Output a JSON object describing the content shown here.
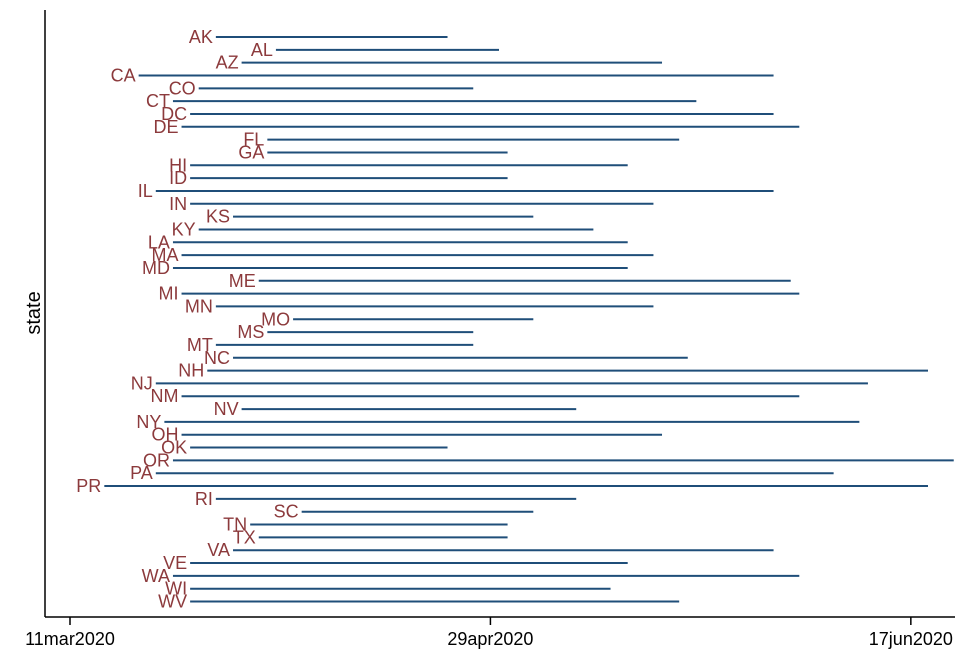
{
  "chart_data": {
    "type": "range",
    "ylabel": "state",
    "x_ticks": [
      "11mar2020",
      "29apr2020",
      "17jun2020"
    ],
    "x_range": [
      "2020-03-11",
      "2020-06-19"
    ],
    "colors": {
      "segment": "#1f4e79",
      "label": "#8c3a3c",
      "axis": "#000000"
    },
    "states": [
      {
        "name": "AK",
        "start": "2020-03-28",
        "end": "2020-04-24"
      },
      {
        "name": "AL",
        "start": "2020-04-04",
        "end": "2020-04-30"
      },
      {
        "name": "AZ",
        "start": "2020-03-31",
        "end": "2020-05-19"
      },
      {
        "name": "CA",
        "start": "2020-03-19",
        "end": "2020-06-01"
      },
      {
        "name": "CO",
        "start": "2020-03-26",
        "end": "2020-04-27"
      },
      {
        "name": "CT",
        "start": "2020-03-23",
        "end": "2020-05-23"
      },
      {
        "name": "DC",
        "start": "2020-03-25",
        "end": "2020-06-01"
      },
      {
        "name": "DE",
        "start": "2020-03-24",
        "end": "2020-06-04"
      },
      {
        "name": "FL",
        "start": "2020-04-03",
        "end": "2020-05-21"
      },
      {
        "name": "GA",
        "start": "2020-04-03",
        "end": "2020-05-01"
      },
      {
        "name": "HI",
        "start": "2020-03-25",
        "end": "2020-05-15"
      },
      {
        "name": "ID",
        "start": "2020-03-25",
        "end": "2020-05-01"
      },
      {
        "name": "IL",
        "start": "2020-03-21",
        "end": "2020-06-01"
      },
      {
        "name": "IN",
        "start": "2020-03-25",
        "end": "2020-05-18"
      },
      {
        "name": "KS",
        "start": "2020-03-30",
        "end": "2020-05-04"
      },
      {
        "name": "KY",
        "start": "2020-03-26",
        "end": "2020-05-11"
      },
      {
        "name": "LA",
        "start": "2020-03-23",
        "end": "2020-05-15"
      },
      {
        "name": "MA",
        "start": "2020-03-24",
        "end": "2020-05-18"
      },
      {
        "name": "MD",
        "start": "2020-03-23",
        "end": "2020-05-15"
      },
      {
        "name": "ME",
        "start": "2020-04-02",
        "end": "2020-06-03"
      },
      {
        "name": "MI",
        "start": "2020-03-24",
        "end": "2020-06-04"
      },
      {
        "name": "MN",
        "start": "2020-03-28",
        "end": "2020-05-18"
      },
      {
        "name": "MO",
        "start": "2020-04-06",
        "end": "2020-05-04"
      },
      {
        "name": "MS",
        "start": "2020-04-03",
        "end": "2020-04-27"
      },
      {
        "name": "MT",
        "start": "2020-03-28",
        "end": "2020-04-27"
      },
      {
        "name": "NC",
        "start": "2020-03-30",
        "end": "2020-05-22"
      },
      {
        "name": "NH",
        "start": "2020-03-27",
        "end": "2020-06-19"
      },
      {
        "name": "NJ",
        "start": "2020-03-21",
        "end": "2020-06-12"
      },
      {
        "name": "NM",
        "start": "2020-03-24",
        "end": "2020-06-04"
      },
      {
        "name": "NV",
        "start": "2020-03-31",
        "end": "2020-05-09"
      },
      {
        "name": "NY",
        "start": "2020-03-22",
        "end": "2020-06-11"
      },
      {
        "name": "OH",
        "start": "2020-03-24",
        "end": "2020-05-19"
      },
      {
        "name": "OK",
        "start": "2020-03-25",
        "end": "2020-04-24"
      },
      {
        "name": "OR",
        "start": "2020-03-23",
        "end": "2020-06-22"
      },
      {
        "name": "PA",
        "start": "2020-03-21",
        "end": "2020-06-08"
      },
      {
        "name": "PR",
        "start": "2020-03-15",
        "end": "2020-06-19"
      },
      {
        "name": "RI",
        "start": "2020-03-28",
        "end": "2020-05-09"
      },
      {
        "name": "SC",
        "start": "2020-04-07",
        "end": "2020-05-04"
      },
      {
        "name": "TN",
        "start": "2020-04-01",
        "end": "2020-05-01"
      },
      {
        "name": "TX",
        "start": "2020-04-02",
        "end": "2020-05-01"
      },
      {
        "name": "VA",
        "start": "2020-03-30",
        "end": "2020-06-01"
      },
      {
        "name": "VE",
        "start": "2020-03-25",
        "end": "2020-05-15"
      },
      {
        "name": "WA",
        "start": "2020-03-23",
        "end": "2020-06-04"
      },
      {
        "name": "WI",
        "start": "2020-03-25",
        "end": "2020-05-13"
      },
      {
        "name": "WV",
        "start": "2020-03-25",
        "end": "2020-05-21"
      }
    ]
  }
}
